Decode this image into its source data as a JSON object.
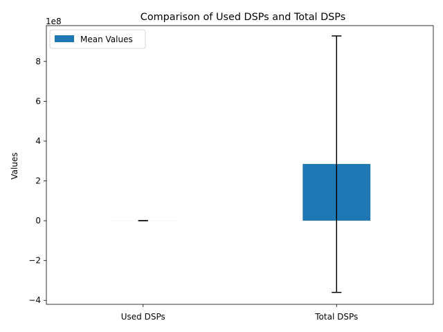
{
  "chart_data": {
    "type": "bar",
    "title": "Comparison of Used DSPs and Total DSPs",
    "xlabel": "",
    "ylabel": "Values",
    "categories": [
      "Used DSPs",
      "Total DSPs"
    ],
    "series": [
      {
        "name": "Mean Values",
        "values": [
          150000,
          285000000
        ],
        "error_low": [
          150000,
          -360000000
        ],
        "error_high": [
          150000,
          928000000
        ]
      }
    ],
    "y_scale_label": "1e8",
    "ylim": [
      -420000000,
      980000000
    ],
    "yticks": [
      -400000000,
      -200000000,
      0,
      200000000,
      400000000,
      600000000,
      800000000
    ],
    "ytick_labels": [
      "−4",
      "−2",
      "0",
      "2",
      "4",
      "6",
      "8"
    ],
    "grid": false,
    "legend_position": "top-left",
    "bar_color": "#1f77b4",
    "errorbar_color": "#000000"
  }
}
